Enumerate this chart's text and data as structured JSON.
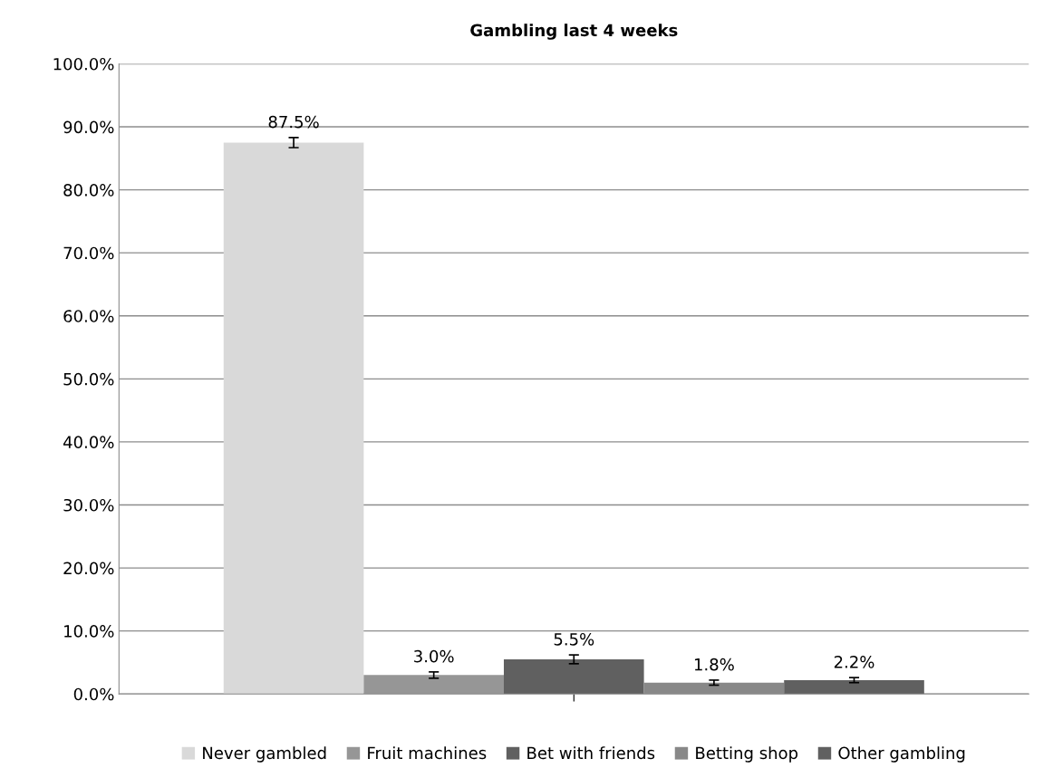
{
  "chart_data": {
    "type": "bar",
    "title": "Gambling last 4 weeks",
    "categories": [
      null
    ],
    "series": [
      {
        "name": "Never gambled",
        "color": "#d9d9d9",
        "values": [
          87.5
        ],
        "errors": [
          0.8
        ],
        "value_labels": [
          "87.5%"
        ]
      },
      {
        "name": "Fruit machines",
        "color": "#969696",
        "values": [
          3.0
        ],
        "errors": [
          0.5
        ],
        "value_labels": [
          "3.0%"
        ]
      },
      {
        "name": "Bet with friends",
        "color": "#606060",
        "values": [
          5.5
        ],
        "errors": [
          0.7
        ],
        "value_labels": [
          "5.5%"
        ]
      },
      {
        "name": "Betting shop",
        "color": "#888888",
        "values": [
          1.8
        ],
        "errors": [
          0.4
        ],
        "value_labels": [
          "1.8%"
        ]
      },
      {
        "name": "Other gambling",
        "color": "#606060",
        "values": [
          2.2
        ],
        "errors": [
          0.4
        ],
        "value_labels": [
          "2.2%"
        ]
      }
    ],
    "ylim": [
      0,
      100
    ],
    "yticks": [
      {
        "value": 0,
        "label": "0.0%"
      },
      {
        "value": 10,
        "label": "10.0%"
      },
      {
        "value": 20,
        "label": "20.0%"
      },
      {
        "value": 30,
        "label": "30.0%"
      },
      {
        "value": 40,
        "label": "40.0%"
      },
      {
        "value": 50,
        "label": "50.0%"
      },
      {
        "value": 60,
        "label": "60.0%"
      },
      {
        "value": 70,
        "label": "70.0%"
      },
      {
        "value": 80,
        "label": "80.0%"
      },
      {
        "value": 90,
        "label": "90.0%"
      },
      {
        "value": 100,
        "label": "100.0%"
      }
    ],
    "grid": "y",
    "legend": "bottom"
  }
}
